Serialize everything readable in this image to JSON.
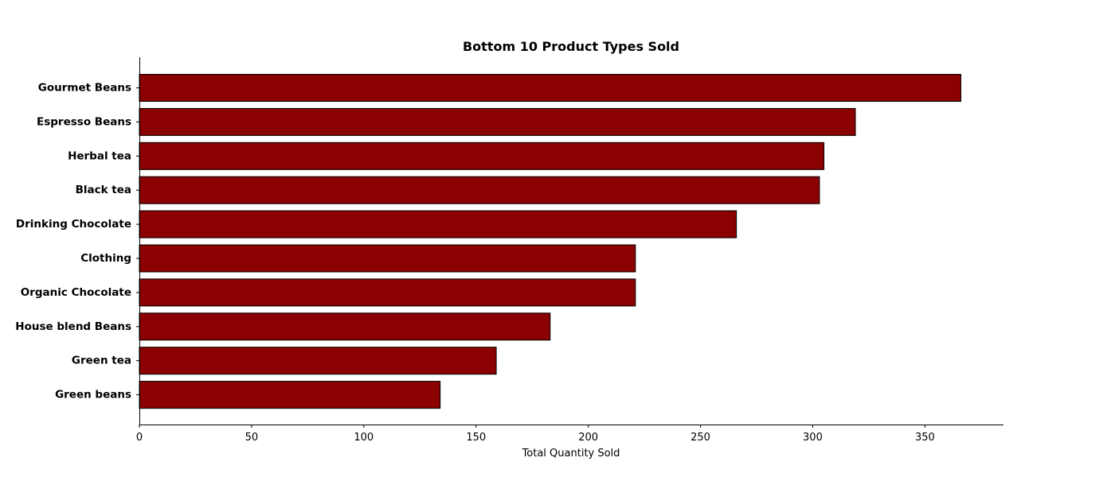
{
  "chart_data": {
    "type": "bar",
    "orientation": "horizontal",
    "title": "Bottom 10 Product Types Sold",
    "xlabel": "Total Quantity Sold",
    "ylabel": "",
    "categories": [
      "Gourmet Beans",
      "Espresso Beans",
      "Herbal tea",
      "Black tea",
      "Drinking Chocolate",
      "Clothing",
      "Organic Chocolate",
      "House blend Beans",
      "Green tea",
      "Green beans"
    ],
    "values": [
      366,
      319,
      305,
      303,
      266,
      221,
      221,
      183,
      159,
      134
    ],
    "xlim": [
      0,
      385
    ],
    "xticks": [
      0,
      50,
      100,
      150,
      200,
      250,
      300,
      350
    ],
    "grid": false,
    "legend": "none",
    "bar_color": "#8b0000",
    "bar_edge_color": "#000000"
  }
}
